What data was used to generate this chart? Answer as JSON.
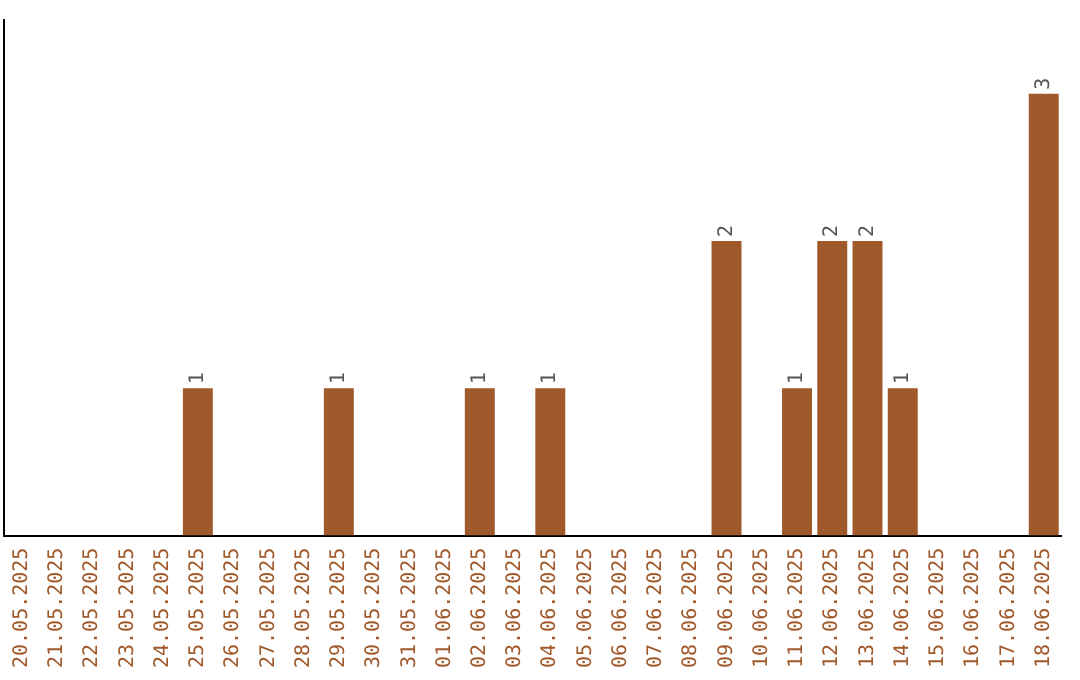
{
  "chart_data": {
    "type": "bar",
    "categories": [
      "20.05.2025",
      "21.05.2025",
      "22.05.2025",
      "23.05.2025",
      "24.05.2025",
      "25.05.2025",
      "26.05.2025",
      "27.05.2025",
      "28.05.2025",
      "29.05.2025",
      "30.05.2025",
      "31.05.2025",
      "01.06.2025",
      "02.06.2025",
      "03.06.2025",
      "04.06.2025",
      "05.06.2025",
      "06.06.2025",
      "07.06.2025",
      "08.06.2025",
      "09.06.2025",
      "10.06.2025",
      "11.06.2025",
      "12.06.2025",
      "13.06.2025",
      "14.06.2025",
      "15.06.2025",
      "16.06.2025",
      "17.06.2025",
      "18.06.2025"
    ],
    "values": [
      0,
      0,
      0,
      0,
      0,
      1,
      0,
      0,
      0,
      1,
      0,
      0,
      0,
      1,
      0,
      1,
      0,
      0,
      0,
      0,
      2,
      0,
      1,
      2,
      2,
      1,
      0,
      0,
      0,
      3
    ],
    "value_labels": [
      null,
      null,
      null,
      null,
      null,
      "1",
      null,
      null,
      null,
      "1",
      null,
      null,
      null,
      "1",
      null,
      "1",
      null,
      null,
      null,
      null,
      "2",
      null,
      "1",
      "2",
      "2",
      "1",
      null,
      null,
      null,
      "3"
    ],
    "color": "#a0592a",
    "grid": false,
    "legend": false,
    "tick_labels": "x"
  }
}
